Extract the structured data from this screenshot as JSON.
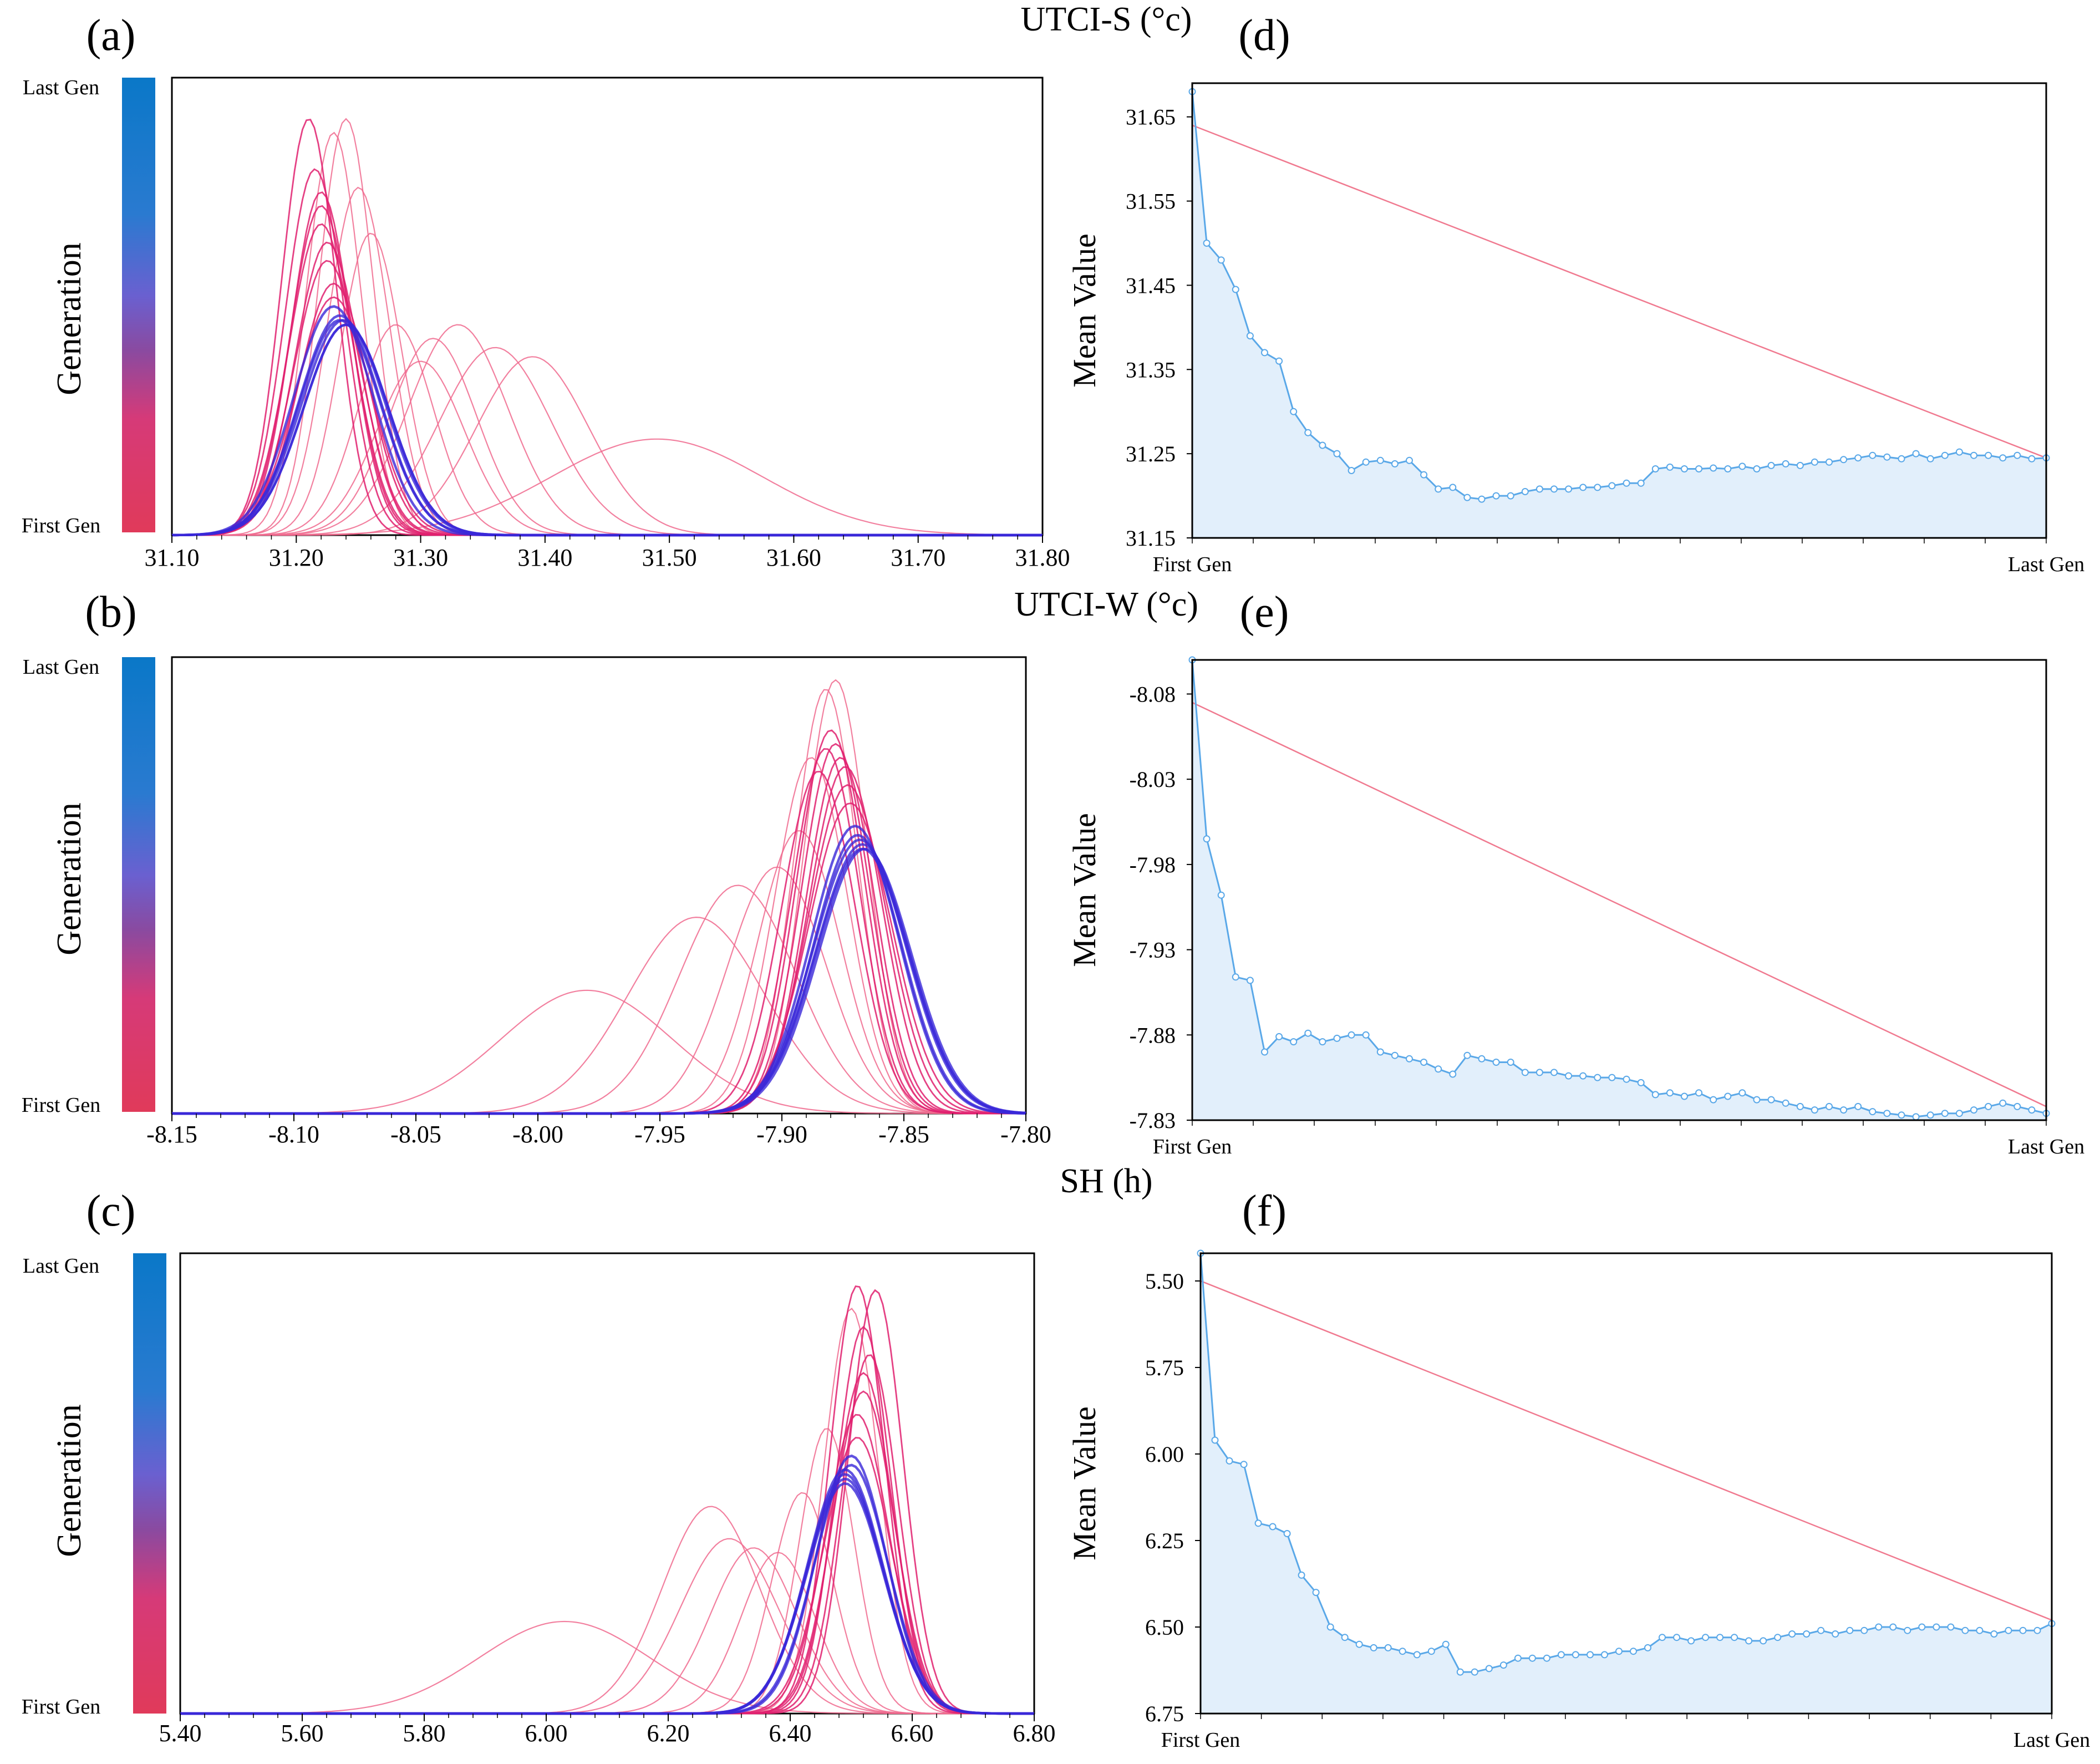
{
  "figure": {
    "rows": [
      {
        "variable_label": "UTCI-S (°c)",
        "left_panel_label": "(a)",
        "right_panel_label": "(d)"
      },
      {
        "variable_label": "UTCI-W (°c)",
        "left_panel_label": "(b)",
        "right_panel_label": "(e)"
      },
      {
        "variable_label": "SH (h)",
        "left_panel_label": "(c)",
        "right_panel_label": "(f)"
      }
    ],
    "colorbar": {
      "title": "Generation",
      "top_label": "Last Gen",
      "bottom_label": "First Gen",
      "colors": [
        "#0a78c8",
        "#5a64d8",
        "#8a4aa0",
        "#d63a78",
        "#e03a5a"
      ]
    },
    "colors": {
      "early_curve": "#f06a8e",
      "mid_curve": "#e0206e",
      "late_curve": "#3a28d8",
      "mean_line": "#5aa8e8",
      "mean_fill": "#e2effb",
      "trend_line": "#f07a90"
    }
  },
  "chart_data": [
    {
      "type": "line",
      "panel": "a",
      "title": "UTCI-S (°c)",
      "xlabel": "",
      "ylabel": "",
      "x_ticks": [
        "31.10",
        "31.20",
        "31.30",
        "31.40",
        "31.50",
        "31.60",
        "31.70",
        "31.80"
      ],
      "xlim": [
        31.1,
        31.8
      ],
      "description_series": "Normal distribution curves per generation (mean, std, relative peak height)",
      "series": [
        {
          "generation": "early",
          "mean": 31.49,
          "std": 0.085,
          "peak": 0.21
        },
        {
          "generation": "early",
          "mean": 31.39,
          "std": 0.045,
          "peak": 0.39
        },
        {
          "generation": "early",
          "mean": 31.36,
          "std": 0.045,
          "peak": 0.41
        },
        {
          "generation": "early",
          "mean": 31.33,
          "std": 0.04,
          "peak": 0.46
        },
        {
          "generation": "early",
          "mean": 31.31,
          "std": 0.035,
          "peak": 0.43
        },
        {
          "generation": "early",
          "mean": 31.3,
          "std": 0.035,
          "peak": 0.38
        },
        {
          "generation": "early",
          "mean": 31.28,
          "std": 0.03,
          "peak": 0.46
        },
        {
          "generation": "early",
          "mean": 31.26,
          "std": 0.025,
          "peak": 0.66
        },
        {
          "generation": "early",
          "mean": 31.25,
          "std": 0.025,
          "peak": 0.76
        },
        {
          "generation": "early",
          "mean": 31.24,
          "std": 0.022,
          "peak": 0.91
        },
        {
          "generation": "early",
          "mean": 31.23,
          "std": 0.022,
          "peak": 0.88
        },
        {
          "generation": "mid",
          "mean": 31.21,
          "std": 0.022,
          "peak": 0.91
        },
        {
          "generation": "mid",
          "mean": 31.215,
          "std": 0.024,
          "peak": 0.8
        },
        {
          "generation": "mid",
          "mean": 31.22,
          "std": 0.024,
          "peak": 0.75
        },
        {
          "generation": "mid",
          "mean": 31.22,
          "std": 0.025,
          "peak": 0.72
        },
        {
          "generation": "mid",
          "mean": 31.22,
          "std": 0.026,
          "peak": 0.68
        },
        {
          "generation": "mid",
          "mean": 31.225,
          "std": 0.026,
          "peak": 0.64
        },
        {
          "generation": "mid",
          "mean": 31.225,
          "std": 0.027,
          "peak": 0.6
        },
        {
          "generation": "mid",
          "mean": 31.23,
          "std": 0.028,
          "peak": 0.55
        },
        {
          "generation": "mid",
          "mean": 31.23,
          "std": 0.03,
          "peak": 0.52
        },
        {
          "generation": "late",
          "mean": 31.23,
          "std": 0.032,
          "peak": 0.5
        },
        {
          "generation": "late",
          "mean": 31.235,
          "std": 0.033,
          "peak": 0.48
        },
        {
          "generation": "late",
          "mean": 31.235,
          "std": 0.033,
          "peak": 0.47
        },
        {
          "generation": "late",
          "mean": 31.238,
          "std": 0.034,
          "peak": 0.47
        },
        {
          "generation": "late",
          "mean": 31.24,
          "std": 0.034,
          "peak": 0.46
        },
        {
          "generation": "late",
          "mean": 31.24,
          "std": 0.034,
          "peak": 0.46
        }
      ]
    },
    {
      "type": "line",
      "panel": "b",
      "title": "UTCI-W (°c)",
      "xlabel": "",
      "ylabel": "",
      "x_ticks": [
        "-8.15",
        "-8.10",
        "-8.05",
        "-8.00",
        "-7.95",
        "-7.90",
        "-7.85",
        "-7.80"
      ],
      "xlim": [
        -8.15,
        -7.8
      ],
      "series": [
        {
          "generation": "early",
          "mean": -7.98,
          "std": 0.035,
          "peak": 0.27
        },
        {
          "generation": "early",
          "mean": -7.935,
          "std": 0.028,
          "peak": 0.43
        },
        {
          "generation": "early",
          "mean": -7.918,
          "std": 0.024,
          "peak": 0.5
        },
        {
          "generation": "early",
          "mean": -7.902,
          "std": 0.02,
          "peak": 0.54
        },
        {
          "generation": "early",
          "mean": -7.893,
          "std": 0.017,
          "peak": 0.62
        },
        {
          "generation": "early",
          "mean": -7.888,
          "std": 0.015,
          "peak": 0.78
        },
        {
          "generation": "early",
          "mean": -7.882,
          "std": 0.013,
          "peak": 0.93
        },
        {
          "generation": "early",
          "mean": -7.878,
          "std": 0.013,
          "peak": 0.95
        },
        {
          "generation": "mid",
          "mean": -7.885,
          "std": 0.015,
          "peak": 0.75
        },
        {
          "generation": "mid",
          "mean": -7.882,
          "std": 0.014,
          "peak": 0.8
        },
        {
          "generation": "mid",
          "mean": -7.88,
          "std": 0.014,
          "peak": 0.84
        },
        {
          "generation": "mid",
          "mean": -7.878,
          "std": 0.014,
          "peak": 0.81
        },
        {
          "generation": "mid",
          "mean": -7.876,
          "std": 0.014,
          "peak": 0.78
        },
        {
          "generation": "mid",
          "mean": -7.874,
          "std": 0.015,
          "peak": 0.76
        },
        {
          "generation": "mid",
          "mean": -7.873,
          "std": 0.016,
          "peak": 0.72
        },
        {
          "generation": "mid",
          "mean": -7.872,
          "std": 0.017,
          "peak": 0.68
        },
        {
          "generation": "late",
          "mean": -7.87,
          "std": 0.018,
          "peak": 0.63
        },
        {
          "generation": "late",
          "mean": -7.869,
          "std": 0.018,
          "peak": 0.61
        },
        {
          "generation": "late",
          "mean": -7.868,
          "std": 0.019,
          "peak": 0.6
        },
        {
          "generation": "late",
          "mean": -7.867,
          "std": 0.019,
          "peak": 0.59
        },
        {
          "generation": "late",
          "mean": -7.867,
          "std": 0.019,
          "peak": 0.58
        },
        {
          "generation": "late",
          "mean": -7.866,
          "std": 0.019,
          "peak": 0.58
        }
      ]
    },
    {
      "type": "line",
      "panel": "c",
      "title": "SH (h)",
      "xlabel": "",
      "ylabel": "",
      "x_ticks": [
        "5.40",
        "5.60",
        "5.80",
        "6.00",
        "6.20",
        "6.40",
        "6.60",
        "6.80"
      ],
      "xlim": [
        5.4,
        6.8
      ],
      "series": [
        {
          "generation": "early",
          "mean": 6.03,
          "std": 0.14,
          "peak": 0.2
        },
        {
          "generation": "early",
          "mean": 6.27,
          "std": 0.08,
          "peak": 0.45
        },
        {
          "generation": "early",
          "mean": 6.3,
          "std": 0.08,
          "peak": 0.38
        },
        {
          "generation": "early",
          "mean": 6.34,
          "std": 0.07,
          "peak": 0.36
        },
        {
          "generation": "early",
          "mean": 6.38,
          "std": 0.06,
          "peak": 0.35
        },
        {
          "generation": "early",
          "mean": 6.42,
          "std": 0.05,
          "peak": 0.48
        },
        {
          "generation": "early",
          "mean": 6.46,
          "std": 0.045,
          "peak": 0.62
        },
        {
          "generation": "early",
          "mean": 6.5,
          "std": 0.045,
          "peak": 0.88
        },
        {
          "generation": "mid",
          "mean": 6.51,
          "std": 0.045,
          "peak": 0.93
        },
        {
          "generation": "mid",
          "mean": 6.54,
          "std": 0.045,
          "peak": 0.92
        },
        {
          "generation": "mid",
          "mean": 6.52,
          "std": 0.045,
          "peak": 0.84
        },
        {
          "generation": "mid",
          "mean": 6.53,
          "std": 0.046,
          "peak": 0.78
        },
        {
          "generation": "mid",
          "mean": 6.52,
          "std": 0.048,
          "peak": 0.74
        },
        {
          "generation": "mid",
          "mean": 6.52,
          "std": 0.05,
          "peak": 0.7
        },
        {
          "generation": "mid",
          "mean": 6.51,
          "std": 0.052,
          "peak": 0.65
        },
        {
          "generation": "mid",
          "mean": 6.51,
          "std": 0.055,
          "peak": 0.6
        },
        {
          "generation": "late",
          "mean": 6.5,
          "std": 0.058,
          "peak": 0.56
        },
        {
          "generation": "late",
          "mean": 6.5,
          "std": 0.06,
          "peak": 0.54
        },
        {
          "generation": "late",
          "mean": 6.49,
          "std": 0.062,
          "peak": 0.53
        },
        {
          "generation": "late",
          "mean": 6.49,
          "std": 0.062,
          "peak": 0.52
        },
        {
          "generation": "late",
          "mean": 6.49,
          "std": 0.063,
          "peak": 0.51
        },
        {
          "generation": "late",
          "mean": 6.49,
          "std": 0.063,
          "peak": 0.5
        }
      ]
    },
    {
      "type": "area",
      "panel": "d",
      "title": "UTCI-S (°c)",
      "ylabel": "Mean Value",
      "x_start_label": "First Gen",
      "x_end_label": "Last Gen",
      "y_ticks": [
        "31.65",
        "31.55",
        "31.45",
        "31.35",
        "31.25",
        "31.15"
      ],
      "ylim": [
        31.15,
        31.69
      ],
      "inverted": false,
      "trend": [
        31.64,
        31.245
      ],
      "values": [
        31.68,
        31.5,
        31.48,
        31.445,
        31.39,
        31.37,
        31.36,
        31.3,
        31.275,
        31.26,
        31.25,
        31.23,
        31.24,
        31.242,
        31.238,
        31.242,
        31.225,
        31.208,
        31.21,
        31.198,
        31.196,
        31.2,
        31.2,
        31.205,
        31.208,
        31.208,
        31.208,
        31.21,
        31.21,
        31.212,
        31.215,
        31.215,
        31.232,
        31.234,
        31.232,
        31.232,
        31.233,
        31.232,
        31.235,
        31.232,
        31.236,
        31.238,
        31.236,
        31.24,
        31.24,
        31.243,
        31.245,
        31.248,
        31.246,
        31.244,
        31.25,
        31.244,
        31.248,
        31.252,
        31.248,
        31.248,
        31.245,
        31.248,
        31.244,
        31.245
      ]
    },
    {
      "type": "area",
      "panel": "e",
      "title": "UTCI-W (°c)",
      "ylabel": "Mean Value",
      "x_start_label": "First Gen",
      "x_end_label": "Last Gen",
      "y_ticks": [
        "-8.08",
        "-8.03",
        "-7.98",
        "-7.93",
        "-7.88",
        "-7.83"
      ],
      "ylim": [
        -8.1,
        -7.83
      ],
      "inverted": true,
      "trend": [
        -8.075,
        -7.838
      ],
      "values": [
        -8.1,
        -7.995,
        -7.962,
        -7.914,
        -7.912,
        -7.87,
        -7.879,
        -7.876,
        -7.881,
        -7.876,
        -7.878,
        -7.88,
        -7.88,
        -7.87,
        -7.868,
        -7.866,
        -7.864,
        -7.86,
        -7.857,
        -7.868,
        -7.866,
        -7.864,
        -7.864,
        -7.858,
        -7.858,
        -7.858,
        -7.856,
        -7.856,
        -7.855,
        -7.855,
        -7.854,
        -7.852,
        -7.845,
        -7.846,
        -7.844,
        -7.846,
        -7.842,
        -7.844,
        -7.846,
        -7.842,
        -7.842,
        -7.84,
        -7.838,
        -7.836,
        -7.838,
        -7.836,
        -7.838,
        -7.835,
        -7.834,
        -7.833,
        -7.832,
        -7.833,
        -7.834,
        -7.834,
        -7.836,
        -7.838,
        -7.84,
        -7.838,
        -7.836,
        -7.834
      ]
    },
    {
      "type": "area",
      "panel": "f",
      "title": "SH (h)",
      "ylabel": "Mean Value",
      "x_start_label": "First Gen",
      "x_end_label": "Last Gen",
      "y_ticks": [
        "5.50",
        "5.75",
        "6.00",
        "6.25",
        "6.50",
        "6.75"
      ],
      "ylim": [
        5.42,
        6.75
      ],
      "inverted": true,
      "trend": [
        5.5,
        6.48
      ],
      "values": [
        5.42,
        5.96,
        6.02,
        6.03,
        6.2,
        6.21,
        6.23,
        6.35,
        6.4,
        6.5,
        6.53,
        6.55,
        6.56,
        6.56,
        6.57,
        6.58,
        6.57,
        6.55,
        6.63,
        6.63,
        6.62,
        6.61,
        6.59,
        6.59,
        6.59,
        6.58,
        6.58,
        6.58,
        6.58,
        6.57,
        6.57,
        6.56,
        6.53,
        6.53,
        6.54,
        6.53,
        6.53,
        6.53,
        6.54,
        6.54,
        6.53,
        6.52,
        6.52,
        6.51,
        6.52,
        6.51,
        6.51,
        6.5,
        6.5,
        6.51,
        6.5,
        6.5,
        6.5,
        6.51,
        6.51,
        6.52,
        6.51,
        6.51,
        6.51,
        6.49
      ]
    }
  ]
}
